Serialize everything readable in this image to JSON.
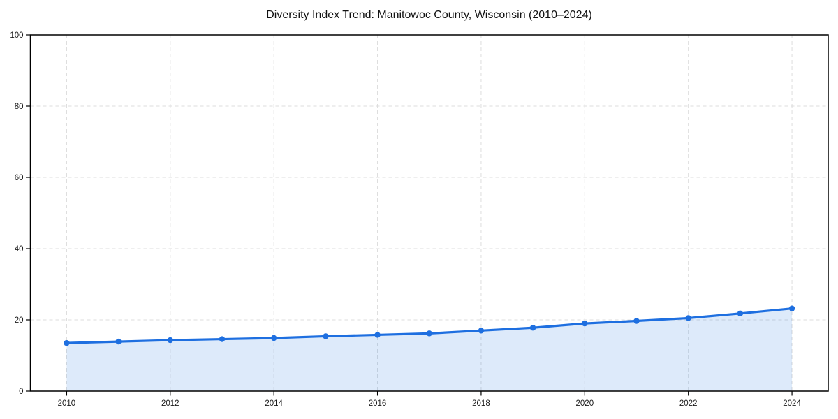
{
  "page": {
    "background": "#ffffff"
  },
  "chart_data": {
    "type": "line",
    "title": "Diversity Index Trend: Manitowoc County, Wisconsin (2010–2024)",
    "x": [
      2010,
      2011,
      2012,
      2013,
      2014,
      2015,
      2016,
      2017,
      2018,
      2019,
      2020,
      2021,
      2022,
      2023,
      2024
    ],
    "values": [
      13.5,
      13.9,
      14.3,
      14.6,
      14.9,
      15.4,
      15.8,
      16.2,
      17.0,
      17.8,
      19.0,
      19.7,
      20.5,
      21.8,
      23.2
    ],
    "xlabel": "",
    "ylabel": "",
    "xlim": [
      2009.3,
      2024.7
    ],
    "ylim": [
      0,
      100
    ],
    "xticks": [
      2010,
      2012,
      2014,
      2016,
      2018,
      2020,
      2022,
      2024
    ],
    "yticks": [
      0,
      20,
      40,
      60,
      80,
      100
    ],
    "grid": true,
    "grid_style": "dashed",
    "legend": "none",
    "marker": "circle",
    "area_fill": true,
    "colors": {
      "line": "#1e6fe0",
      "marker": "#1e6fe0",
      "area": "rgba(30,111,224,0.15)",
      "grid": "#dcdcdc",
      "axis": "#000000",
      "text": "#1a1a1a"
    }
  }
}
